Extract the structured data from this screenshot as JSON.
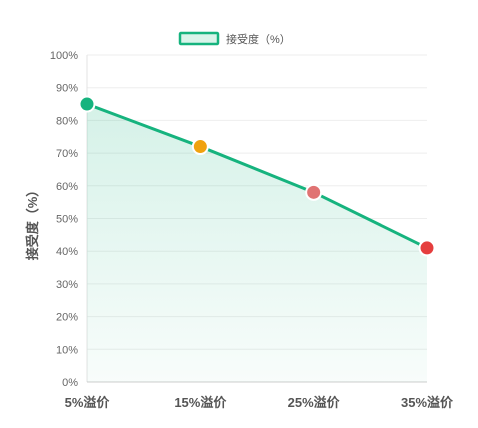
{
  "chart_data": {
    "type": "area",
    "categories": [
      "5%溢价",
      "15%溢价",
      "25%溢价",
      "35%溢价"
    ],
    "series": [
      {
        "name": "接受度（%）",
        "values": [
          85,
          72,
          58,
          41
        ],
        "line_color": "#16b37e",
        "fill_color": "#d9f4ea",
        "point_colors": [
          "#16b37e",
          "#f0a20f",
          "#e07373",
          "#e53e3e"
        ]
      }
    ],
    "title": "",
    "xlabel": "",
    "ylabel": "接受度（%）",
    "ylim": [
      0,
      100
    ],
    "yticks": [
      "0%",
      "10%",
      "20%",
      "30%",
      "40%",
      "50%",
      "60%",
      "70%",
      "80%",
      "90%",
      "100%"
    ],
    "legend_position": "top-center",
    "grid": true
  }
}
